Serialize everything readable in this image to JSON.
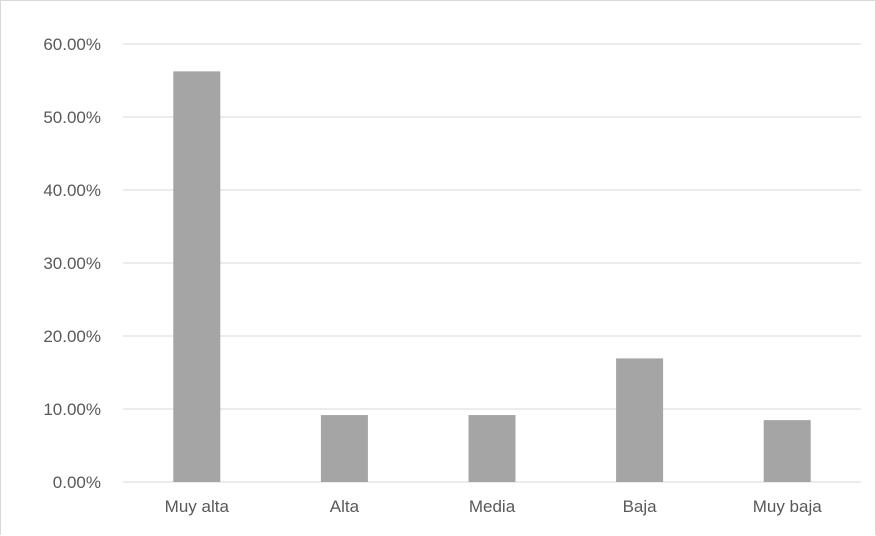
{
  "chart_data": {
    "type": "bar",
    "title": "",
    "xlabel": "",
    "ylabel": "",
    "categories": [
      "Muy alta",
      "Alta",
      "Media",
      "Baja",
      "Muy baja"
    ],
    "values": [
      0.5625,
      0.0917,
      0.0917,
      0.1693,
      0.0848
    ],
    "ylim": [
      0,
      0.6
    ],
    "yticks": [
      0,
      0.1,
      0.2,
      0.3,
      0.4,
      0.5,
      0.6
    ],
    "ytick_labels": [
      "0.00%",
      "10.00%",
      "20.00%",
      "30.00%",
      "40.00%",
      "50.00%",
      "60.00%"
    ],
    "grid": true,
    "legend": "none",
    "colors": {
      "bar": "#a5a5a5",
      "grid": "#d9d9d9",
      "text": "#595959"
    }
  }
}
